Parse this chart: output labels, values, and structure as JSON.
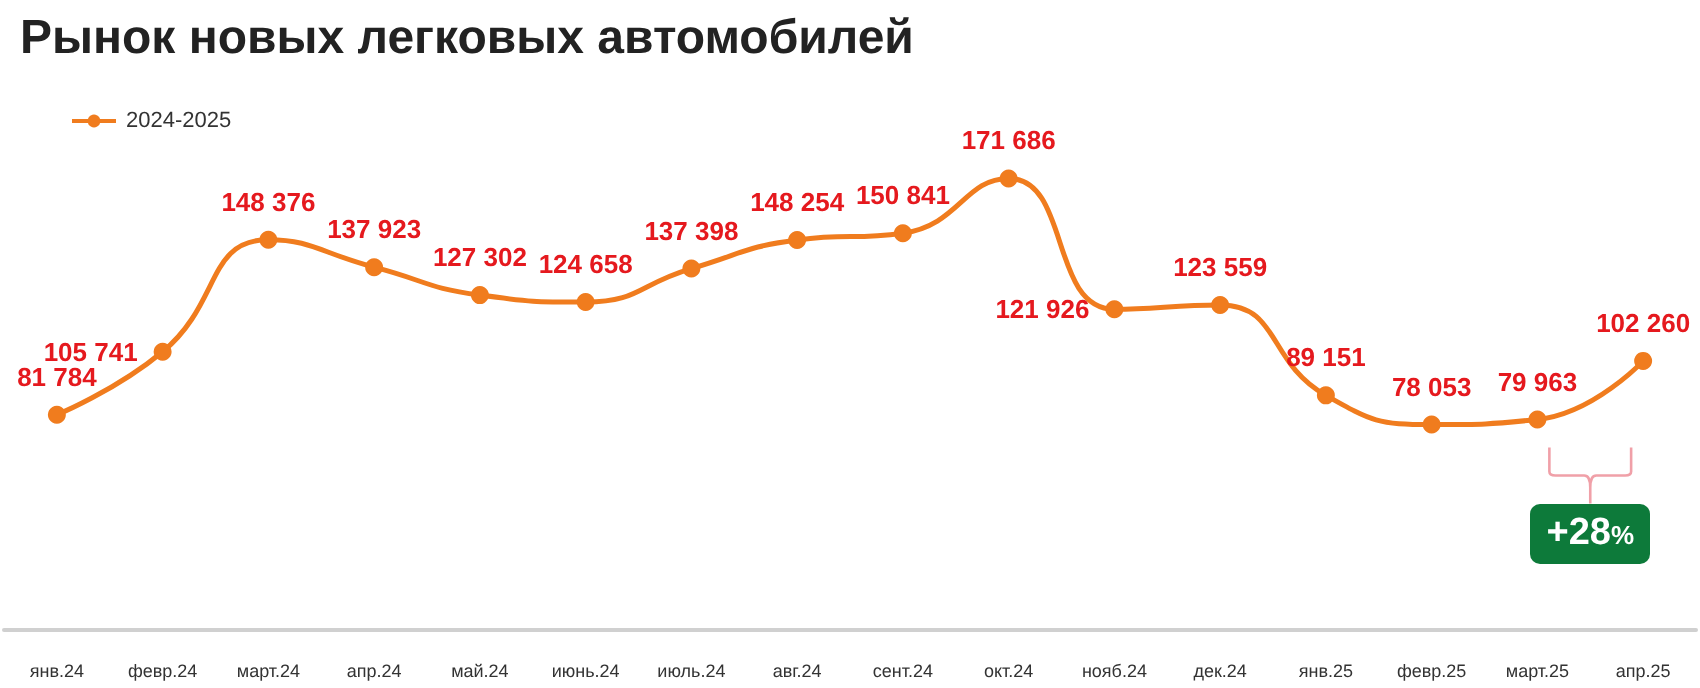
{
  "chart_data": {
    "type": "line",
    "title": "Рынок новых легковых автомобилей",
    "categories": [
      "янв.24",
      "февр.24",
      "март.24",
      "апр.24",
      "май.24",
      "июнь.24",
      "июль.24",
      "авг.24",
      "сент.24",
      "окт.24",
      "нояб.24",
      "дек.24",
      "янв.25",
      "февр.25",
      "март.25",
      "апр.25"
    ],
    "series": [
      {
        "name": "2024-2025",
        "color": "#f07c1e",
        "values": [
          81784,
          105741,
          148376,
          137923,
          127302,
          124658,
          137398,
          148254,
          150841,
          171686,
          121926,
          123559,
          89151,
          78053,
          79963,
          102260
        ]
      }
    ],
    "data_labels": true,
    "legend": "top left",
    "marker": "circle",
    "line_style": "solid",
    "grid": false,
    "annotations": [
      "+28%"
    ]
  }
}
